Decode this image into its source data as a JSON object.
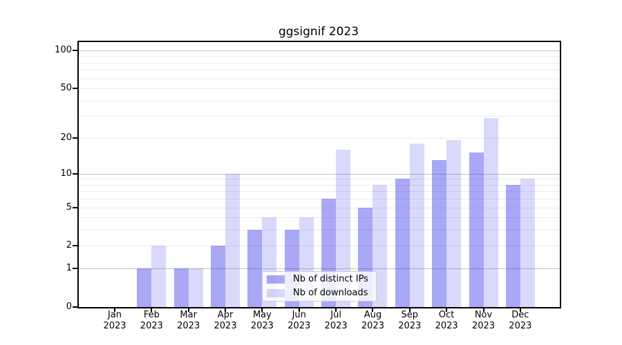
{
  "title": "ggsignif 2023",
  "chart_data": {
    "type": "bar",
    "title": "ggsignif 2023",
    "categories": [
      "Jan\n2023",
      "Feb\n2023",
      "Mar\n2023",
      "Apr\n2023",
      "May\n2023",
      "Jun\n2023",
      "Jul\n2023",
      "Aug\n2023",
      "Sep\n2023",
      "Oct\n2023",
      "Nov\n2023",
      "Dec\n2023"
    ],
    "series": [
      {
        "name": "Nb of distinct IPs",
        "values": [
          0,
          1,
          1,
          2,
          3,
          3,
          6,
          5,
          9,
          13,
          15,
          8
        ],
        "color": "rgba(0,0,230,0.34)"
      },
      {
        "name": "Nb of downloads",
        "values": [
          0,
          2,
          1,
          10,
          4,
          4,
          16,
          8,
          18,
          19,
          29,
          9
        ],
        "color": "rgba(0,0,230,0.15)"
      }
    ],
    "yscale": "log1p",
    "ylim": [
      0,
      116
    ],
    "ytick_values": [
      0,
      1,
      2,
      5,
      10,
      20,
      50,
      100
    ],
    "ytick_labels": [
      "0",
      "1",
      "2",
      "5",
      "10",
      "20",
      "50",
      "100"
    ],
    "major_gridlines": [
      1,
      10,
      100
    ],
    "minor_gridlines": [
      2,
      3,
      4,
      5,
      6,
      7,
      8,
      9,
      20,
      30,
      40,
      50,
      60,
      70,
      80,
      90
    ],
    "grid": "both",
    "legend_position": "lower center",
    "xlabel": "",
    "ylabel": ""
  },
  "colors": {
    "major_grid": "#c3c3c3",
    "minor_grid": "#ececec",
    "spine": "#000000",
    "background": "#ffffff",
    "bar_distinct_ips": "rgba(0,0,230,0.34)",
    "bar_downloads": "rgba(0,0,230,0.15)"
  }
}
